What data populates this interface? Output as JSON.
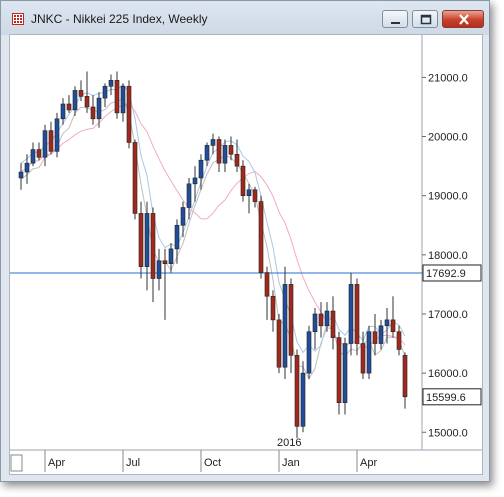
{
  "window": {
    "title": "JNKC - Nikkei 225 Index, Weekly",
    "colors": {
      "up": "#1f4e9c",
      "down": "#a3281c",
      "hline": "#2a6fd6",
      "ma_fast": "#a9c8e6",
      "ma_slow": "#f2a9c8",
      "slow_line": "#bfbfbf"
    }
  },
  "controls": {
    "minimize_icon": "minimize-icon",
    "maximize_icon": "maximize-icon",
    "close_icon": "close-icon"
  },
  "chart_data": {
    "type": "candlestick",
    "y_range": [
      14700,
      21700
    ],
    "y_ticks": [
      "21000.0",
      "20000.0",
      "19000.0",
      "18000.0",
      "17000.0",
      "16000.0",
      "15000.0"
    ],
    "y_tick_values": [
      21000,
      20000,
      19000,
      18000,
      17000,
      16000,
      15000
    ],
    "x_labels": [
      "Apr",
      "Jul",
      "Oct",
      "Jan",
      "Apr"
    ],
    "x_label_index": [
      4,
      17,
      30,
      43,
      56
    ],
    "year_marker": "2016",
    "year_marker_index": 43,
    "horizontal_line": {
      "value": 17692.9,
      "label": "17692.9"
    },
    "last_price": {
      "value": 15599.6,
      "label": "15599.6"
    },
    "candles": [
      [
        19300,
        19550,
        19100,
        19400
      ],
      [
        19400,
        19700,
        19200,
        19550
      ],
      [
        19550,
        19900,
        19500,
        19780
      ],
      [
        19780,
        19900,
        19600,
        19650
      ],
      [
        19650,
        20200,
        19500,
        20100
      ],
      [
        20100,
        20250,
        19700,
        19750
      ],
      [
        19750,
        20400,
        19650,
        20300
      ],
      [
        20300,
        20650,
        20200,
        20550
      ],
      [
        20550,
        20700,
        20400,
        20450
      ],
      [
        20450,
        20850,
        20350,
        20780
      ],
      [
        20780,
        20950,
        20600,
        20680
      ],
      [
        20680,
        21100,
        20400,
        20500
      ],
      [
        20500,
        20700,
        20200,
        20300
      ],
      [
        20300,
        20750,
        20150,
        20650
      ],
      [
        20650,
        20900,
        20500,
        20850
      ],
      [
        20850,
        21050,
        20700,
        20950
      ],
      [
        20950,
        21100,
        20300,
        20400
      ],
      [
        20400,
        20900,
        20250,
        20850
      ],
      [
        20850,
        20950,
        19800,
        19900
      ],
      [
        19900,
        19950,
        18600,
        18700
      ],
      [
        18700,
        18900,
        17600,
        17800
      ],
      [
        17800,
        18900,
        17400,
        18700
      ],
      [
        18700,
        18800,
        17200,
        17600
      ],
      [
        17600,
        18100,
        17400,
        17900
      ],
      [
        17900,
        18100,
        16900,
        17850
      ],
      [
        17850,
        18200,
        17700,
        18100
      ],
      [
        18100,
        18600,
        17850,
        18500
      ],
      [
        18500,
        18900,
        18300,
        18800
      ],
      [
        18800,
        19300,
        18600,
        19200
      ],
      [
        19200,
        19500,
        18900,
        19300
      ],
      [
        19300,
        19700,
        19100,
        19600
      ],
      [
        19600,
        19900,
        19500,
        19850
      ],
      [
        19850,
        20050,
        19700,
        19950
      ],
      [
        19950,
        20000,
        19400,
        19550
      ],
      [
        19550,
        19950,
        19400,
        19850
      ],
      [
        19850,
        20000,
        19600,
        19700
      ],
      [
        19700,
        19950,
        19400,
        19500
      ],
      [
        19500,
        19600,
        18900,
        19000
      ],
      [
        19000,
        19200,
        18700,
        19100
      ],
      [
        19100,
        19150,
        18800,
        18900
      ],
      [
        18900,
        19000,
        17600,
        17700
      ],
      [
        17700,
        17800,
        16900,
        17300
      ],
      [
        17300,
        17400,
        16700,
        16900
      ],
      [
        16900,
        17000,
        16000,
        16100
      ],
      [
        16100,
        17800,
        15900,
        17500
      ],
      [
        17500,
        17600,
        16000,
        16300
      ],
      [
        16300,
        16400,
        14900,
        15100
      ],
      [
        15100,
        16200,
        15000,
        16000
      ],
      [
        16000,
        16800,
        15900,
        16700
      ],
      [
        16700,
        17100,
        16400,
        17000
      ],
      [
        17000,
        17200,
        16600,
        16800
      ],
      [
        16800,
        17200,
        16700,
        17050
      ],
      [
        17050,
        17300,
        16400,
        16600
      ],
      [
        16600,
        16700,
        15300,
        15500
      ],
      [
        15500,
        16600,
        15300,
        16500
      ],
      [
        16500,
        17700,
        16300,
        17500
      ],
      [
        17500,
        17600,
        16300,
        16500
      ],
      [
        16500,
        16700,
        15900,
        16000
      ],
      [
        16000,
        16800,
        15900,
        16700
      ],
      [
        16700,
        17000,
        16300,
        16500
      ],
      [
        16500,
        16900,
        16400,
        16800
      ],
      [
        16800,
        17100,
        16500,
        16900
      ],
      [
        16900,
        17300,
        16600,
        16700
      ],
      [
        16700,
        16800,
        16300,
        16400
      ],
      [
        16300,
        16350,
        15400,
        15600
      ]
    ]
  }
}
